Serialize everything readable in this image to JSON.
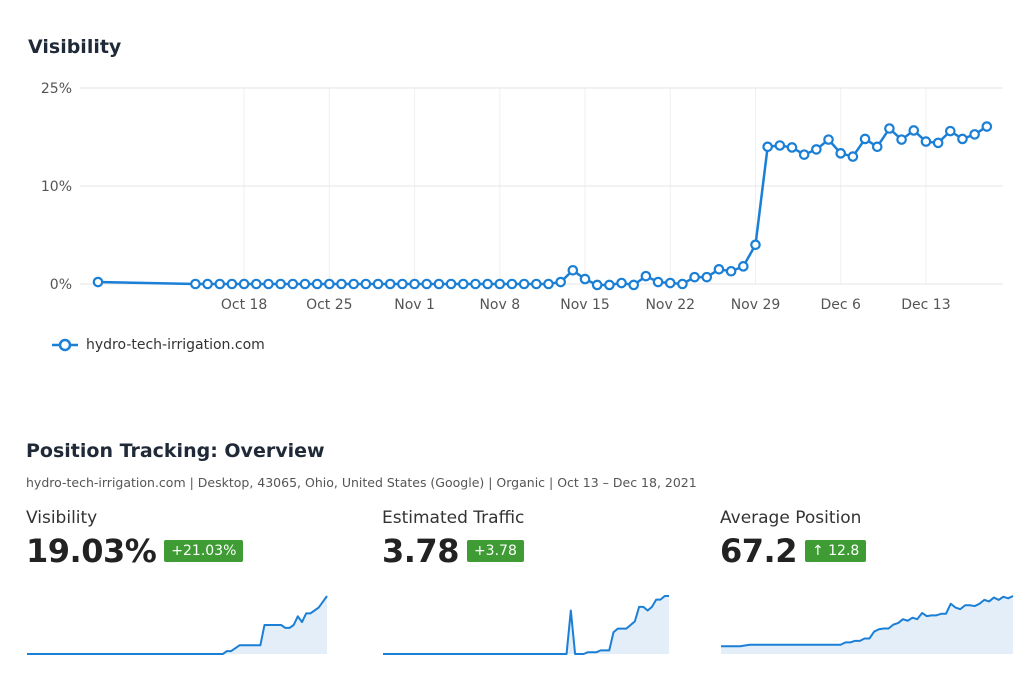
{
  "chart_data": {
    "type": "line",
    "title": "Visibility",
    "series": [
      {
        "name": "hydro-tech-irrigation.com",
        "color": "#1b7fd6",
        "points": [
          [
            -7,
            0.2
          ],
          [
            1,
            0
          ],
          [
            2,
            0
          ],
          [
            3,
            0
          ],
          [
            4,
            0
          ],
          [
            5,
            0
          ],
          [
            6,
            0
          ],
          [
            7,
            0
          ],
          [
            8,
            0
          ],
          [
            9,
            0
          ],
          [
            10,
            0
          ],
          [
            11,
            0
          ],
          [
            12,
            0
          ],
          [
            13,
            0
          ],
          [
            14,
            0
          ],
          [
            15,
            0
          ],
          [
            16,
            0
          ],
          [
            17,
            0
          ],
          [
            18,
            0
          ],
          [
            19,
            0
          ],
          [
            20,
            0
          ],
          [
            21,
            0
          ],
          [
            22,
            0
          ],
          [
            23,
            0
          ],
          [
            24,
            0
          ],
          [
            25,
            0
          ],
          [
            26,
            0
          ],
          [
            27,
            0
          ],
          [
            28,
            0
          ],
          [
            29,
            0
          ],
          [
            30,
            0
          ],
          [
            31,
            0.2
          ],
          [
            32,
            1.4
          ],
          [
            33,
            0.5
          ],
          [
            34,
            -0.1
          ],
          [
            35,
            -0.1
          ],
          [
            36,
            0.1
          ],
          [
            37,
            -0.1
          ],
          [
            38,
            0.8
          ],
          [
            39,
            0.2
          ],
          [
            40,
            0.1
          ],
          [
            41,
            0
          ],
          [
            42,
            0.7
          ],
          [
            43,
            0.7
          ],
          [
            44,
            1.5
          ],
          [
            45,
            1.3
          ],
          [
            46,
            1.8
          ],
          [
            47,
            4
          ],
          [
            48,
            16
          ],
          [
            49,
            16.2
          ],
          [
            50,
            15.9
          ],
          [
            51,
            14.8
          ],
          [
            52,
            15.6
          ],
          [
            53,
            17.1
          ],
          [
            54,
            15
          ],
          [
            55,
            14.5
          ],
          [
            56,
            17.2
          ],
          [
            57,
            16
          ],
          [
            58,
            18.8
          ],
          [
            59,
            17.1
          ],
          [
            60,
            18.5
          ],
          [
            61,
            16.8
          ],
          [
            62,
            16.6
          ],
          [
            63,
            18.4
          ],
          [
            64,
            17.2
          ],
          [
            65,
            17.9
          ],
          [
            66,
            19.1
          ]
        ]
      }
    ],
    "x_ticks": [
      {
        "day": 5,
        "label": "Oct 18"
      },
      {
        "day": 12,
        "label": "Oct 25"
      },
      {
        "day": 19,
        "label": "Nov 1"
      },
      {
        "day": 26,
        "label": "Nov 8"
      },
      {
        "day": 33,
        "label": "Nov 15"
      },
      {
        "day": 40,
        "label": "Nov 22"
      },
      {
        "day": 47,
        "label": "Nov 29"
      },
      {
        "day": 54,
        "label": "Dec 6"
      },
      {
        "day": 61,
        "label": "Dec 13"
      }
    ],
    "y_ticks": [
      {
        "value": 0,
        "label": "0%"
      },
      {
        "value": 10,
        "label": "10%"
      },
      {
        "value": 25,
        "label": "25%"
      }
    ],
    "ylim": [
      0,
      25
    ],
    "grid": true,
    "legend": "bottom-left"
  },
  "visibility_title": "Visibility",
  "legend_label": "hydro-tech-irrigation.com",
  "overview": {
    "title": "Position Tracking: Overview",
    "subtitle": "hydro-tech-irrigation.com | Desktop, 43065, Ohio, United States (Google) | Organic | Oct 13 – Dec 18, 2021",
    "metrics": [
      {
        "label": "Visibility",
        "value": "19.03%",
        "change": "+21.03%",
        "spark": [
          0,
          0,
          0,
          0,
          0,
          0,
          0,
          0,
          0,
          0,
          0,
          0,
          0,
          0,
          0,
          0,
          0,
          0,
          0,
          0,
          0,
          0,
          0,
          0,
          0,
          0,
          0,
          0,
          0,
          0,
          0,
          0,
          0,
          0,
          0,
          0,
          0,
          0,
          0,
          0,
          0,
          0,
          0,
          0,
          0,
          0,
          0,
          0,
          1,
          1,
          2,
          3,
          3,
          3,
          3,
          3,
          3,
          10,
          10,
          10,
          10,
          10,
          9,
          9,
          10,
          13,
          11,
          14,
          14,
          15,
          16,
          18,
          20
        ]
      },
      {
        "label": "Estimated Traffic",
        "value": "3.78",
        "change": "+3.78",
        "spark": [
          0,
          0,
          0,
          0,
          0,
          0,
          0,
          0,
          0,
          0,
          0,
          0,
          0,
          0,
          0,
          0,
          0,
          0,
          0,
          0,
          0,
          0,
          0,
          0,
          0,
          0,
          0,
          0,
          0,
          0,
          0,
          0,
          0,
          0,
          0,
          0,
          0,
          0,
          0,
          0,
          0,
          0,
          0,
          0,
          12,
          0,
          0,
          0,
          0.5,
          0.5,
          0.5,
          1,
          1,
          1,
          6,
          7,
          7,
          7,
          8,
          9,
          13,
          13,
          12,
          13,
          15,
          15,
          16,
          16
        ]
      },
      {
        "label": "Average Position",
        "value": "67.2",
        "change": "↑ 12.8",
        "spark": [
          2,
          2,
          2,
          2,
          2,
          2.2,
          2.4,
          2.4,
          2.4,
          2.4,
          2.4,
          2.4,
          2.4,
          2.4,
          2.4,
          2.4,
          2.4,
          2.4,
          2.4,
          2.4,
          2.4,
          2.4,
          2.4,
          2.4,
          2.4,
          2.4,
          3,
          3,
          3.4,
          3.4,
          4,
          4,
          5.8,
          6.4,
          6.6,
          6.6,
          7.6,
          8,
          9,
          8.6,
          9.4,
          9,
          10.6,
          9.8,
          10,
          10,
          10.4,
          10.4,
          13,
          12,
          11.6,
          12.6,
          12.6,
          12.4,
          13,
          14,
          13.6,
          14.6,
          14,
          14.8,
          14.4,
          15
        ]
      }
    ]
  }
}
